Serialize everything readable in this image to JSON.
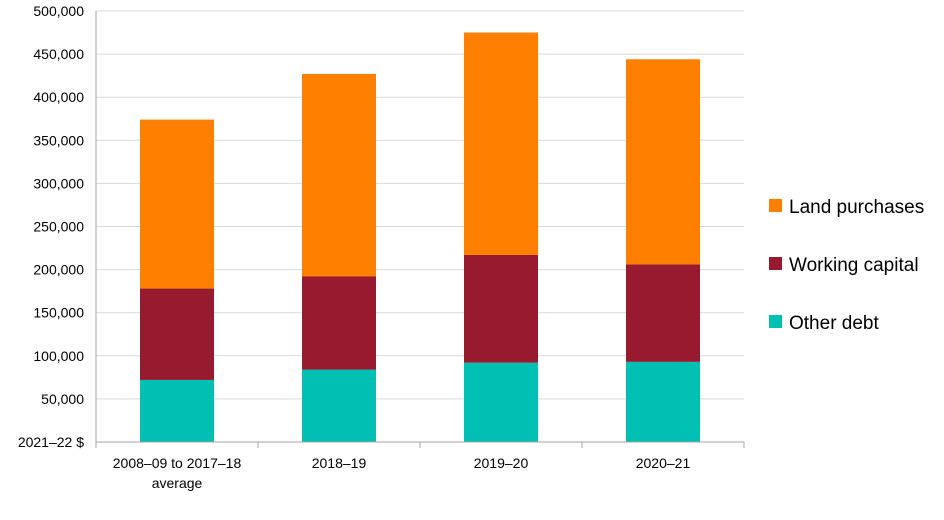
{
  "chart_data": {
    "type": "bar",
    "stacked": true,
    "categories": [
      [
        "2008–09 to 2017–18",
        "average"
      ],
      [
        "2018–19"
      ],
      [
        "2019–20"
      ],
      [
        "2020–21"
      ]
    ],
    "series": [
      {
        "name": "Other debt",
        "color": "#00BFB3",
        "values": [
          72000,
          84000,
          92000,
          93000
        ]
      },
      {
        "name": "Working capital",
        "color": "#971A2F",
        "values": [
          106000,
          108000,
          125000,
          113000
        ]
      },
      {
        "name": "Land purchases",
        "color": "#FF7F00",
        "values": [
          196000,
          235000,
          258000,
          238000
        ]
      }
    ],
    "ylabel": "2021–22 $",
    "ylim": [
      0,
      500000
    ],
    "yticks": [
      0,
      50000,
      100000,
      150000,
      200000,
      250000,
      300000,
      350000,
      400000,
      450000,
      500000
    ],
    "ytick_labels": [
      "2021–22 $",
      "50,000",
      "100,000",
      "150,000",
      "200,000",
      "250,000",
      "300,000",
      "350,000",
      "400,000",
      "450,000",
      "500,000"
    ],
    "legend_order": [
      "Land purchases",
      "Working capital",
      "Other debt"
    ],
    "legend_position": "right",
    "grid": true,
    "gridline_color": "#D9D9D9"
  }
}
